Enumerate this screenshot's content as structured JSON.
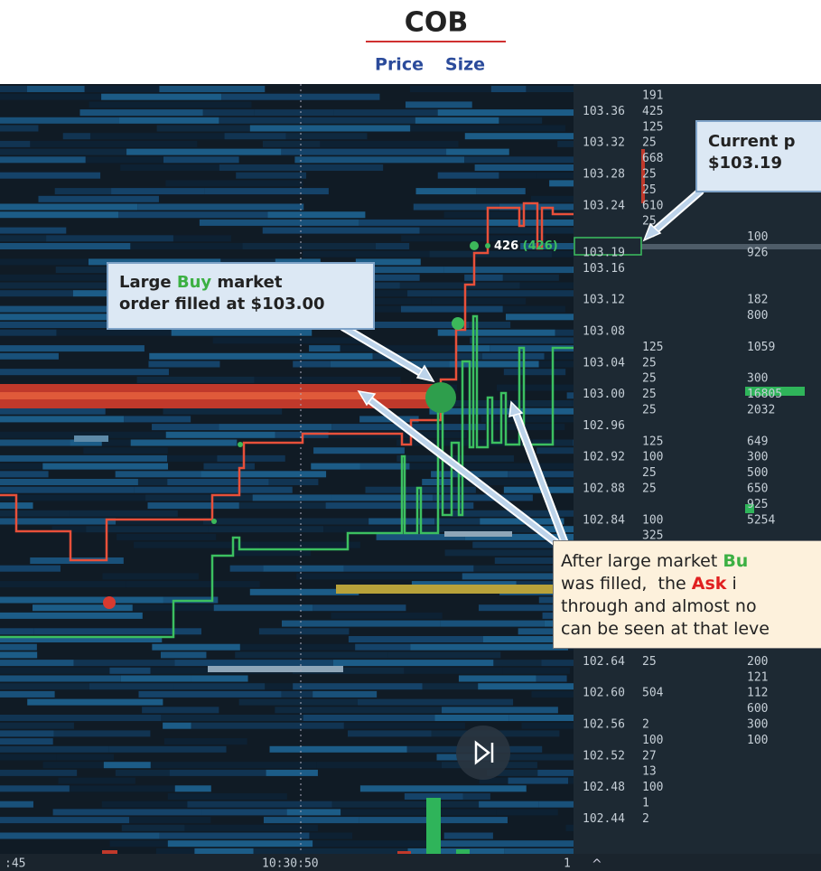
{
  "header": {
    "title": "COB",
    "price_label": "Price",
    "size_label": "Size"
  },
  "ladder": {
    "rows": [
      {
        "size": "191"
      },
      {
        "price": "103.36",
        "size": "425"
      },
      {
        "size": "125"
      },
      {
        "price": "103.32",
        "size": "25"
      },
      {
        "size": "668"
      },
      {
        "price": "103.28",
        "size": "25"
      },
      {
        "size": "25"
      },
      {
        "price": "103.24",
        "size": "610"
      },
      {
        "size": "25"
      },
      {
        "bid": "100"
      },
      {
        "price": "103.19",
        "bid": "926"
      },
      {
        "price": "103.16"
      },
      {},
      {
        "price": "103.12",
        "bid": "182"
      },
      {
        "bid": "800"
      },
      {
        "price": "103.08"
      },
      {
        "size": "125",
        "bid": "1059"
      },
      {
        "price": "103.04",
        "size": "25"
      },
      {
        "size": "25",
        "bid": "300"
      },
      {
        "price": "103.00",
        "size": "25",
        "bid": "16805"
      },
      {
        "size": "25",
        "bid": "2032"
      },
      {
        "price": "102.96"
      },
      {
        "size": "125",
        "bid": "649"
      },
      {
        "price": "102.92",
        "size": "100",
        "bid": "300"
      },
      {
        "size": "25",
        "bid": "500"
      },
      {
        "price": "102.88",
        "size": "25",
        "bid": "650"
      },
      {
        "bid": "925"
      },
      {
        "price": "102.84",
        "size": "100",
        "bid": "5254"
      },
      {
        "size": "325"
      },
      {},
      {},
      {},
      {},
      {},
      {},
      {},
      {
        "price": "102.64",
        "size": "25",
        "bid": "200"
      },
      {
        "bid": "121"
      },
      {
        "price": "102.60",
        "size": "504",
        "bid": "112"
      },
      {
        "bid": "600"
      },
      {
        "price": "102.56",
        "size": "2",
        "bid": "300"
      },
      {
        "size": "100",
        "bid": "100"
      },
      {
        "price": "102.52",
        "size": "27"
      },
      {
        "size": "13"
      },
      {
        "price": "102.48",
        "size": "100"
      },
      {
        "size": "1"
      },
      {
        "price": "102.44",
        "size": "2"
      }
    ]
  },
  "chart": {
    "trade_label": "426",
    "trade_label_total": "(426)",
    "time_labels": [
      ":45",
      "10:30:50",
      "1"
    ]
  },
  "callouts": {
    "current_price": {
      "lines": [
        [
          {
            "text": "Current p"
          }
        ],
        [
          {
            "text": "$103.19"
          }
        ]
      ]
    },
    "large_buy": {
      "lines": [
        [
          {
            "text": "Large "
          },
          {
            "text": "Buy",
            "color": "#3cb043"
          },
          {
            "text": " market"
          }
        ],
        [
          {
            "text": "order filled at $103.00"
          }
        ]
      ]
    },
    "ask_through": {
      "lines": [
        [
          {
            "text": "After large market "
          },
          {
            "text": "Bu",
            "color": "#3cb043"
          }
        ],
        [
          {
            "text": "was filled,  the "
          },
          {
            "text": "Ask",
            "color": "#e02020"
          },
          {
            "text": " i"
          }
        ],
        [
          {
            "text": "through and almost no"
          }
        ],
        [
          {
            "text": "can be seen at that leve"
          }
        ]
      ]
    }
  }
}
